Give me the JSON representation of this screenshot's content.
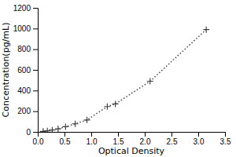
{
  "chart_data": {
    "type": "line",
    "xlabel": "Optical Density",
    "ylabel": "Concentration(pg/mL)",
    "x": [
      0.1,
      0.18,
      0.27,
      0.38,
      0.52,
      0.7,
      0.92,
      1.3,
      1.45,
      2.1,
      3.15
    ],
    "values": [
      5,
      10,
      18,
      30,
      50,
      78,
      115,
      245,
      270,
      490,
      990
    ],
    "color": "#444444",
    "marker": "+",
    "line_style": "dotted",
    "xlim": [
      0,
      3.5
    ],
    "ylim": [
      0,
      1200
    ],
    "xticks": [
      {
        "value": 0,
        "label": "0.0"
      },
      0.5,
      {
        "value": 1.0,
        "label": "1.0"
      },
      1.5,
      {
        "value": 2.0,
        "label": "2.0"
      },
      2.5,
      {
        "value": 3.0,
        "label": "3.0"
      },
      3.5
    ],
    "yticks": [
      0,
      200,
      400,
      600,
      800,
      1000,
      1200
    ]
  }
}
